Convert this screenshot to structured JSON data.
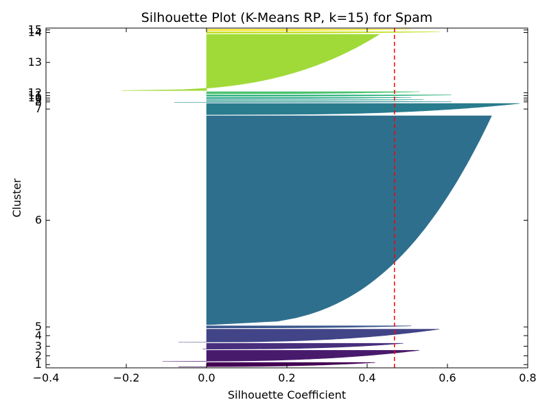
{
  "chart_data": {
    "type": "bar",
    "orientation": "horizontal",
    "title": "Silhouette Plot (K-Means RP, k=15) for Spam",
    "xlabel": "Silhouette Coefficient",
    "ylabel": "Cluster",
    "xlim": [
      -0.4,
      0.8
    ],
    "xticks": [
      -0.4,
      -0.2,
      0.0,
      0.2,
      0.4,
      0.6,
      0.8
    ],
    "xtick_labels": [
      "−0.4",
      "−0.2",
      "0.0",
      "0.2",
      "0.4",
      "0.6",
      "0.8"
    ],
    "grid": false,
    "average_line": {
      "value": 0.468,
      "color": "#ff0000",
      "style": "dashed"
    },
    "clusters": [
      {
        "label": "1",
        "size": 36,
        "max": 0.42,
        "min": -0.07,
        "color": "#440154"
      },
      {
        "label": "2",
        "size": 95,
        "max": 0.53,
        "min": -0.11,
        "color": "#481a6c"
      },
      {
        "label": "3",
        "size": 50,
        "max": 0.49,
        "min": -0.01,
        "color": "#472f7d"
      },
      {
        "label": "4",
        "size": 112,
        "max": 0.58,
        "min": -0.07,
        "color": "#414487"
      },
      {
        "label": "5",
        "size": 18,
        "max": 0.51,
        "min": 0.01,
        "color": "#39568c"
      },
      {
        "label": "6",
        "size": 1797,
        "max": 0.71,
        "min": 0.01,
        "color": "#2e6f8e"
      },
      {
        "label": "7",
        "size": 96,
        "max": 0.78,
        "min": 0.03,
        "color": "#297b8e"
      },
      {
        "label": "8",
        "size": 6,
        "max": 0.61,
        "min": -0.08,
        "color": "#23898e"
      },
      {
        "label": "9",
        "size": 6,
        "max": 0.54,
        "min": 0.0,
        "color": "#1f9a8a"
      },
      {
        "label": "10",
        "size": 9,
        "max": 0.51,
        "min": 0.0,
        "color": "#20a486"
      },
      {
        "label": "11",
        "size": 12,
        "max": 0.61,
        "min": 0.0,
        "color": "#2db27d"
      },
      {
        "label": "12",
        "size": 18,
        "max": 0.53,
        "min": 0.0,
        "color": "#4ac16d"
      },
      {
        "label": "13",
        "size": 483,
        "max": 0.43,
        "min": -0.21,
        "color": "#a0da39"
      },
      {
        "label": "14",
        "size": 12,
        "max": 0.58,
        "min": 0.0,
        "color": "#c2df23"
      },
      {
        "label": "15",
        "size": 12,
        "max": 0.51,
        "min": 0.0,
        "color": "#fde725"
      }
    ]
  }
}
